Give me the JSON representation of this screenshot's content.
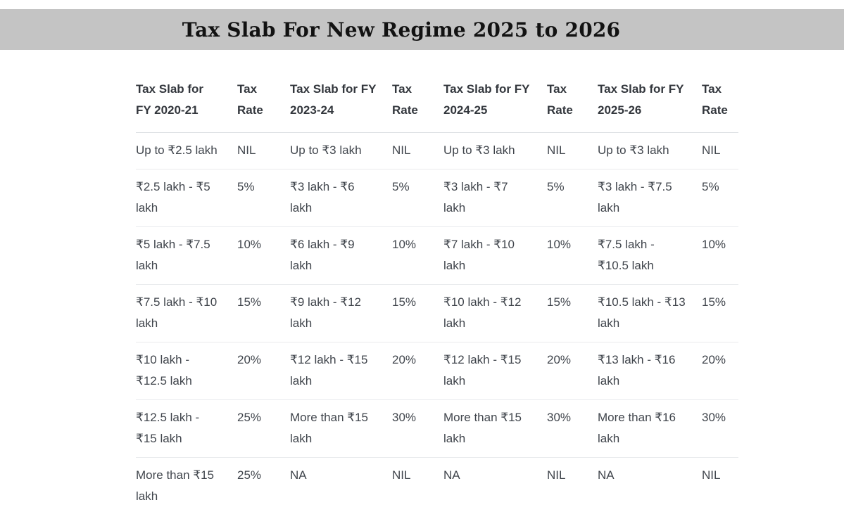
{
  "page": {
    "title": "Tax Slab For New Regime 2025 to 2026"
  },
  "colors": {
    "title_bar_bg": "#c4c4c4",
    "body_text": "#40454c",
    "header_text": "#33373d",
    "row_divider": "#e9ebed"
  },
  "table": {
    "headers": [
      "Tax Slab for FY 2020-21",
      "Tax Rate",
      "Tax Slab for FY 2023-24",
      "Tax Rate",
      "Tax Slab for FY 2024-25",
      "Tax Rate",
      "Tax Slab for FY 2025-26",
      "Tax Rate"
    ],
    "rows": [
      [
        "Up to ₹2.5 lakh",
        "NIL",
        "Up to ₹3 lakh",
        "NIL",
        "Up to ₹3 lakh",
        "NIL",
        "Up to ₹3 lakh",
        "NIL"
      ],
      [
        "₹2.5 lakh - ₹5 lakh",
        "5%",
        "₹3 lakh - ₹6 lakh",
        "5%",
        "₹3 lakh - ₹7 lakh",
        "5%",
        "₹3 lakh - ₹7.5 lakh",
        "5%"
      ],
      [
        "₹5 lakh - ₹7.5 lakh",
        "10%",
        "₹6 lakh - ₹9 lakh",
        "10%",
        "₹7 lakh - ₹10 lakh",
        "10%",
        "₹7.5 lakh - ₹10.5 lakh",
        "10%"
      ],
      [
        "₹7.5 lakh - ₹10 lakh",
        "15%",
        "₹9 lakh - ₹12 lakh",
        "15%",
        "₹10 lakh - ₹12 lakh",
        "15%",
        "₹10.5 lakh - ₹13 lakh",
        "15%"
      ],
      [
        "₹10 lakh - ₹12.5 lakh",
        "20%",
        "₹12 lakh - ₹15 lakh",
        "20%",
        "₹12 lakh - ₹15 lakh",
        "20%",
        "₹13 lakh - ₹16 lakh",
        "20%"
      ],
      [
        "₹12.5 lakh - ₹15 lakh",
        "25%",
        "More than ₹15 lakh",
        "30%",
        "More than ₹15 lakh",
        "30%",
        "More than ₹16 lakh",
        "30%"
      ],
      [
        "More than ₹15 lakh",
        "25%",
        "NA",
        "NIL",
        "NA",
        "NIL",
        "NA",
        "NIL"
      ]
    ]
  }
}
